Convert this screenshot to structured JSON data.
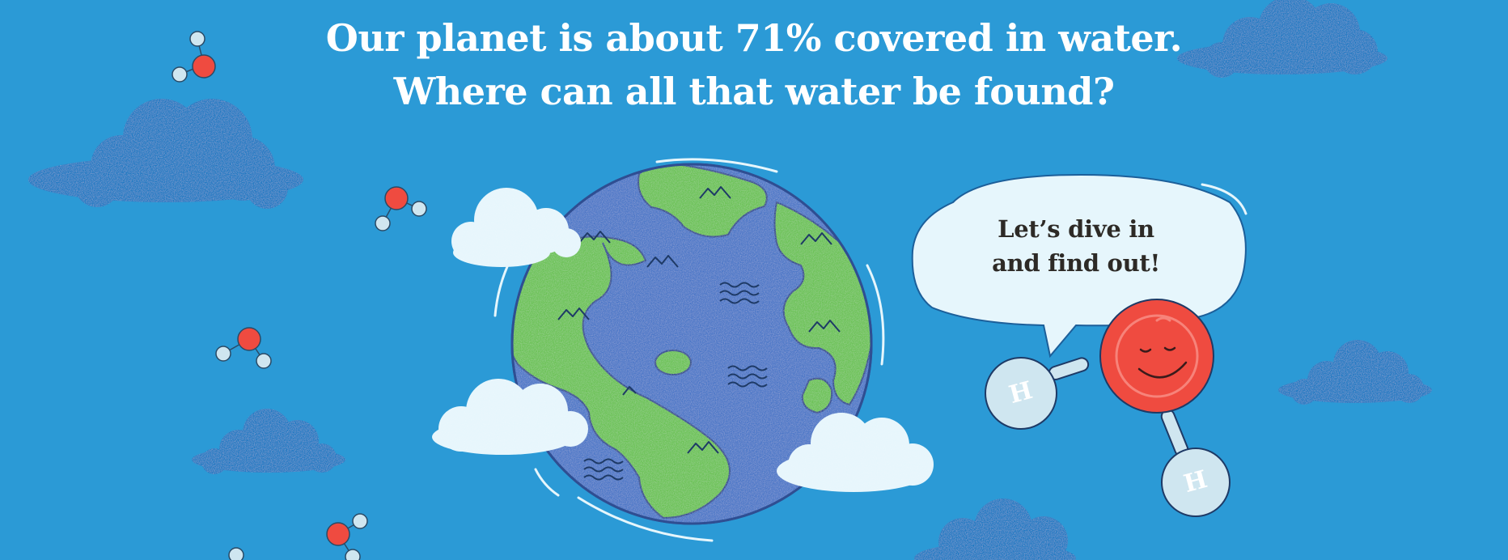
{
  "headline": {
    "line1": "Our planet is about 71% covered in water.",
    "line2": "Where can all that water be found?"
  },
  "speech_bubble": {
    "line1": "Let’s dive in",
    "line2": "and find out!"
  },
  "molecule_atom_label": "H",
  "colors": {
    "background": "#2b9ad6",
    "cloud_dark": "#1f79c2",
    "cloud_light": "#e6f6fc",
    "ocean": "#4c77c7",
    "land": "#6cc256",
    "oxygen": "#ef4b40",
    "hydrogen": "#cfe6f0",
    "headline_text": "#ffffff",
    "bubble_text": "#2d2a26"
  },
  "icons": [
    "water-molecule-icon",
    "cloud-icon",
    "earth-globe-icon",
    "speech-bubble-icon",
    "mountain-icon",
    "water-waves-icon"
  ]
}
